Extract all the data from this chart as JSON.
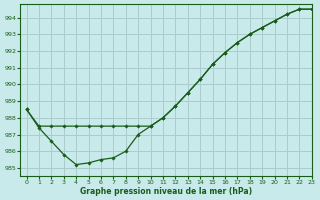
{
  "title": "Graphe pression niveau de la mer (hPa)",
  "bg_color": "#c8eaea",
  "grid_color": "#aacccc",
  "line_color": "#1a5c1a",
  "marker_color": "#1a5c1a",
  "xlim": [
    -0.5,
    23
  ],
  "ylim": [
    984.5,
    994.8
  ],
  "yticks": [
    985,
    986,
    987,
    988,
    989,
    990,
    991,
    992,
    993,
    994
  ],
  "xticks": [
    0,
    1,
    2,
    3,
    4,
    5,
    6,
    7,
    8,
    9,
    10,
    11,
    12,
    13,
    14,
    15,
    16,
    17,
    18,
    19,
    20,
    21,
    22,
    23
  ],
  "series1_x": [
    0,
    1,
    2,
    3,
    4,
    5,
    6,
    7,
    8,
    9,
    10,
    11,
    12,
    13,
    14,
    15,
    16,
    17,
    18,
    19,
    20,
    21,
    22,
    23
  ],
  "series1_y": [
    988.5,
    987.4,
    986.6,
    985.8,
    985.2,
    985.3,
    985.5,
    985.6,
    986.0,
    987.0,
    987.5,
    988.0,
    988.7,
    989.5,
    990.3,
    991.2,
    991.9,
    992.5,
    993.0,
    993.4,
    993.8,
    994.2,
    994.5,
    994.5
  ],
  "series2_x": [
    0,
    1,
    2,
    3,
    4,
    5,
    6,
    7,
    8,
    9,
    10,
    11,
    12,
    13,
    14,
    15,
    16,
    17,
    18,
    19,
    20,
    21,
    22,
    23
  ],
  "series2_y": [
    988.5,
    987.5,
    987.5,
    987.5,
    987.5,
    987.5,
    987.5,
    987.5,
    987.5,
    987.5,
    987.5,
    988.0,
    988.7,
    989.5,
    990.3,
    991.2,
    991.9,
    992.5,
    993.0,
    993.4,
    993.8,
    994.2,
    994.5,
    994.5
  ]
}
